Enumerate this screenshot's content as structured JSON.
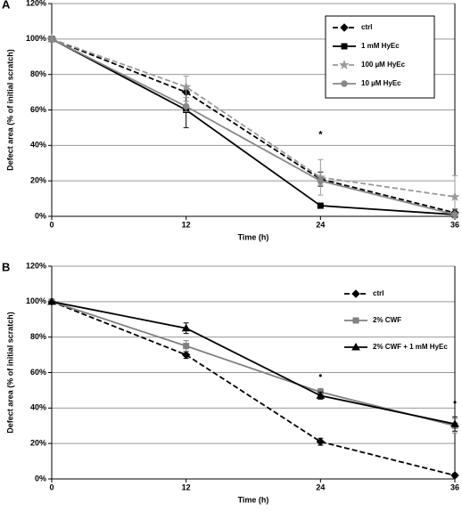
{
  "charts": [
    {
      "type": "line",
      "panel_label": "A",
      "xlabel": "Time (h)",
      "ylabel": "Defect area (% of initial scratch)",
      "x": [
        0,
        12,
        24,
        36
      ],
      "xlim": [
        0,
        36
      ],
      "xticks": [
        0,
        12,
        24,
        36
      ],
      "ylim": [
        0,
        120
      ],
      "yticks": [
        {
          "value": 0,
          "label": "0%"
        },
        {
          "value": 20,
          "label": "20%"
        },
        {
          "value": 40,
          "label": "40%"
        },
        {
          "value": 60,
          "label": "60%"
        },
        {
          "value": 80,
          "label": "80%"
        },
        {
          "value": 100,
          "label": "100%"
        },
        {
          "value": 120,
          "label": "120%"
        }
      ],
      "grid": true,
      "legend": "upper right",
      "legend_frame": true,
      "series": [
        {
          "name": "ctrl",
          "color": "#000000",
          "dash": true,
          "marker": "diamond",
          "values": [
            100,
            70,
            21,
            2
          ],
          "errors": [
            0,
            3,
            4,
            2
          ]
        },
        {
          "name": "1 mM HyEc",
          "color": "#000000",
          "dash": false,
          "marker": "square",
          "values": [
            100,
            60,
            6,
            1
          ],
          "errors": [
            0,
            10,
            1,
            1
          ]
        },
        {
          "name": "100 µM HyEc",
          "color": "#999999",
          "dash": true,
          "marker": "star",
          "values": [
            100,
            73,
            22,
            11
          ],
          "errors": [
            0,
            6,
            10,
            12
          ]
        },
        {
          "name": "10 µM HyEc",
          "color": "#888888",
          "dash": false,
          "marker": "circle",
          "values": [
            100,
            62,
            20,
            1
          ],
          "errors": [
            0,
            3,
            2,
            1
          ]
        }
      ],
      "annotations": [
        {
          "text": "*",
          "x": 24,
          "y": 46
        }
      ]
    },
    {
      "type": "line",
      "panel_label": "B",
      "xlabel": "Time (h)",
      "ylabel": "Defect area (% of initial scratch)",
      "x": [
        0,
        12,
        24,
        36
      ],
      "xlim": [
        0,
        36
      ],
      "xticks": [
        0,
        12,
        24,
        36
      ],
      "ylim": [
        0,
        120
      ],
      "yticks": [
        {
          "value": 0,
          "label": "0%"
        },
        {
          "value": 20,
          "label": "20%"
        },
        {
          "value": 40,
          "label": "40%"
        },
        {
          "value": 60,
          "label": "60%"
        },
        {
          "value": 80,
          "label": "80%"
        },
        {
          "value": 100,
          "label": "100%"
        },
        {
          "value": 120,
          "label": "120%"
        }
      ],
      "grid": true,
      "legend": "upper right",
      "legend_frame": false,
      "series": [
        {
          "name": "ctrl",
          "color": "#000000",
          "dash": true,
          "marker": "diamond",
          "values": [
            100,
            70,
            21,
            2
          ],
          "errors": [
            0,
            2,
            2,
            1
          ]
        },
        {
          "name": "2% CWF",
          "color": "#808080",
          "dash": false,
          "marker": "square",
          "values": [
            100,
            75,
            49,
            30
          ],
          "errors": [
            0,
            3,
            2,
            4
          ]
        },
        {
          "name": "2% CWF + 1 mM HyEc",
          "color": "#000000",
          "dash": false,
          "marker": "triangle",
          "values": [
            100,
            85,
            47,
            31
          ],
          "errors": [
            0,
            3,
            2,
            4
          ]
        }
      ],
      "annotations": [
        {
          "text": "•",
          "x": 24,
          "y": 58
        },
        {
          "text": "•",
          "x": 36,
          "y": 43
        }
      ]
    }
  ]
}
